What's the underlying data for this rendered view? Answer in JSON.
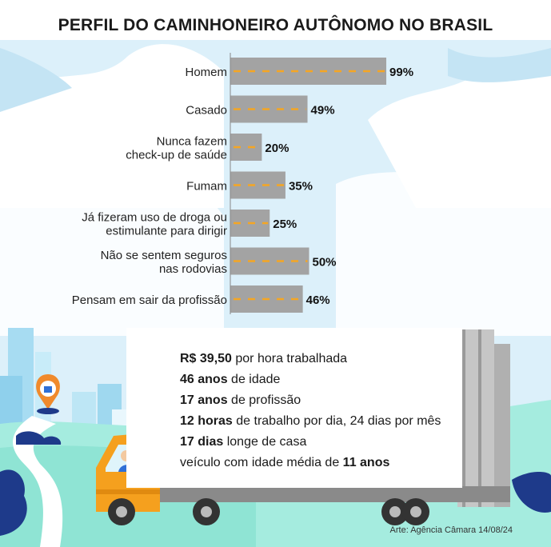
{
  "title": "PERFIL DO CAMINHONEIRO AUTÔNOMO NO BRASIL",
  "chart_data": {
    "type": "bar",
    "orientation": "horizontal",
    "categories": [
      [
        "Homem"
      ],
      [
        "Casado"
      ],
      [
        "Nunca fazem",
        "check-up de saúde"
      ],
      [
        "Fumam"
      ],
      [
        "Já fizeram uso de droga ou",
        "estimulante para dirigir"
      ],
      [
        "Não se sentem seguros",
        "nas rodovias"
      ],
      [
        "Pensam em sair da profissão"
      ]
    ],
    "values": [
      99,
      49,
      20,
      35,
      25,
      50,
      46
    ],
    "value_labels": [
      "99%",
      "49%",
      "20%",
      "35%",
      "25%",
      "50%",
      "46%"
    ],
    "xlim": [
      0,
      100
    ],
    "grid": false,
    "legend": "none",
    "bar_color": "#a3a3a3",
    "dash_color": "#f5a623"
  },
  "info": {
    "lines": [
      {
        "bold": "R$ 39,50",
        "text": " por hora trabalhada"
      },
      {
        "bold": "46 anos",
        "text": " de idade"
      },
      {
        "bold": "17 anos",
        "text": " de profissão"
      },
      {
        "bold": "12 horas",
        "text": " de trabalho por dia, 24 dias por mês"
      },
      {
        "bold": "17 dias",
        "text": " longe de casa"
      },
      {
        "pre": "veículo com idade média de ",
        "bold": "11 anos"
      }
    ]
  },
  "credit": "Arte: Agência Câmara 14/08/24",
  "colors": {
    "sky": "#d8eef9",
    "cloud": "#eef7fc",
    "hills": "#9fe8dc",
    "dark_blue": "#1e3a8a",
    "truck_orange": "#f5a01e",
    "trailer_gray": "#c9c9c9"
  }
}
